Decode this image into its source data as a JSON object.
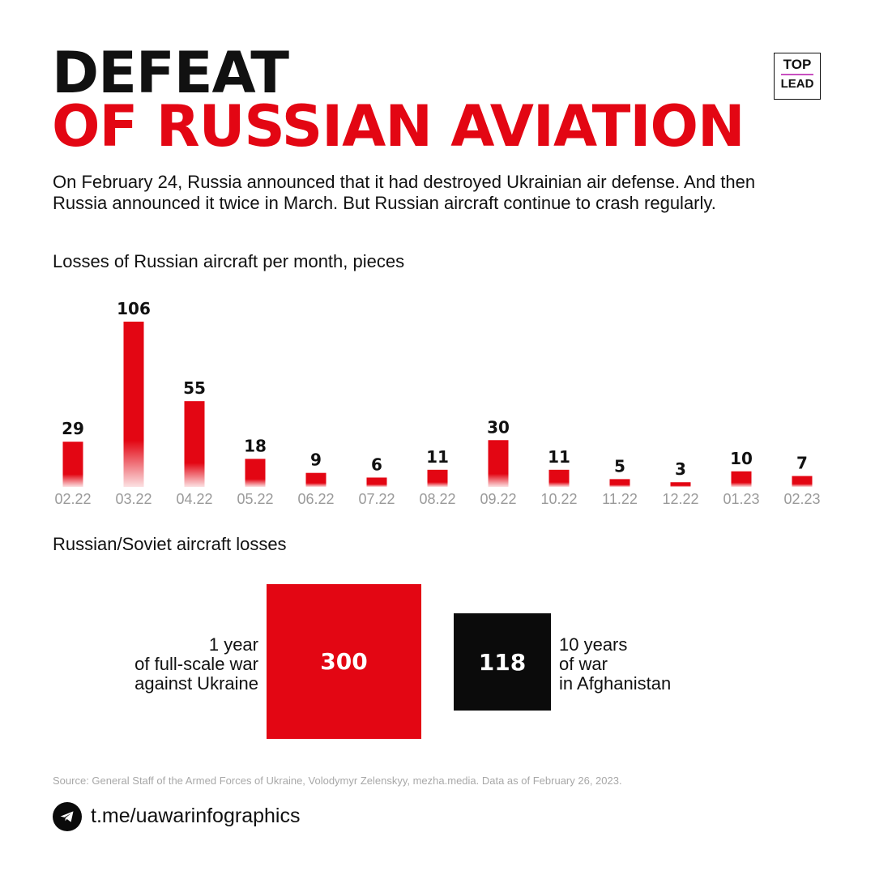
{
  "title": {
    "line1": "DEFEAT",
    "line2": "OF RUSSIAN AVIATION"
  },
  "logo": {
    "top": "TOP",
    "bottom": "LEAD"
  },
  "intro": "On February 24, Russia announced that it had destroyed Ukrainian air defense. And then Russia announced it twice in March. But Russian aircraft continue to crash regularly.",
  "colors": {
    "accent": "#e30613",
    "dark": "#0b0b0b",
    "muted": "#9a9a9a"
  },
  "chart_data": {
    "type": "bar",
    "title": "Losses of Russian aircraft per month, pieces",
    "categories": [
      "02.22",
      "03.22",
      "04.22",
      "05.22",
      "06.22",
      "07.22",
      "08.22",
      "09.22",
      "10.22",
      "11.22",
      "12.22",
      "01.23",
      "02.23"
    ],
    "values": [
      29,
      106,
      55,
      18,
      9,
      6,
      11,
      30,
      11,
      5,
      3,
      10,
      7
    ],
    "xlabel": "",
    "ylabel": "",
    "grid": false
  },
  "comparison": {
    "title": "Russian/Soviet aircraft losses",
    "left": {
      "value": "300",
      "label_lines": [
        "1 year",
        "of full-scale war",
        "against Ukraine"
      ]
    },
    "right": {
      "value": "118",
      "label_lines": [
        "10 years",
        "of war",
        "in Afghanistan"
      ]
    }
  },
  "source": "Source: General Staff of the Armed Forces of Ukraine, Volodymyr Zelenskyy, mezha.media. Data as of February 26, 2023.",
  "footer": {
    "icon": "telegram-icon",
    "link": "t.me/uawarinfographics"
  }
}
